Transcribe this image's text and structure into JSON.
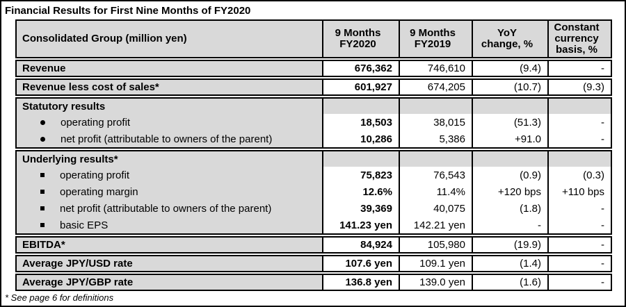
{
  "title": "Financial Results for First Nine Months of FY2020",
  "footnote": "* See page 6 for definitions",
  "colors": {
    "header_bg": "#d9d9d9",
    "label_column_bg": "#d9d9d9",
    "data_cell_bg": "#ffffff",
    "border": "#000000"
  },
  "table": {
    "header": [
      "Consolidated Group (million yen)",
      "9 Months\nFY2020",
      "9 Months\nFY2019",
      "YoY\nchange, %",
      "Constant\ncurrency\nbasis, %"
    ],
    "groups": [
      {
        "rows": [
          {
            "label": "Revenue",
            "style": "heading",
            "shaded": false,
            "values": [
              "676,362",
              "746,610",
              "(9.4)",
              "-"
            ]
          }
        ]
      },
      {
        "rows": [
          {
            "label": "Revenue less cost of sales*",
            "style": "heading",
            "shaded": false,
            "values": [
              "601,927",
              "674,205",
              "(10.7)",
              "(9.3)"
            ]
          }
        ]
      },
      {
        "rows": [
          {
            "label": "Statutory results",
            "style": "heading",
            "shaded": true,
            "values": [
              "",
              "",
              "",
              ""
            ]
          },
          {
            "label": "operating profit",
            "style": "bullet-round",
            "shaded": false,
            "values": [
              "18,503",
              "38,015",
              "(51.3)",
              "-"
            ]
          },
          {
            "label": "net profit (attributable to owners of the parent)",
            "style": "bullet-round",
            "shaded": false,
            "values": [
              "10,286",
              "5,386",
              "+91.0",
              "-"
            ]
          }
        ]
      },
      {
        "rows": [
          {
            "label": "Underlying results*",
            "style": "heading",
            "shaded": true,
            "values": [
              "",
              "",
              "",
              ""
            ]
          },
          {
            "label": "operating profit",
            "style": "bullet-square",
            "shaded": false,
            "values": [
              "75,823",
              "76,543",
              "(0.9)",
              "(0.3)"
            ]
          },
          {
            "label": "operating margin",
            "style": "bullet-square",
            "shaded": false,
            "values": [
              "12.6%",
              "11.4%",
              "+120 bps",
              "+110 bps"
            ]
          },
          {
            "label": "net profit (attributable to owners of the parent)",
            "style": "bullet-square",
            "shaded": false,
            "values": [
              "39,369",
              "40,075",
              "(1.8)",
              "-"
            ]
          },
          {
            "label": "basic EPS",
            "style": "bullet-square",
            "shaded": false,
            "values": [
              "141.23 yen",
              "142.21 yen",
              "-",
              "-"
            ]
          }
        ]
      },
      {
        "rows": [
          {
            "label": "EBITDA*",
            "style": "heading",
            "shaded": false,
            "values": [
              "84,924",
              "105,980",
              "(19.9)",
              "-"
            ]
          }
        ]
      },
      {
        "rows": [
          {
            "label": "Average JPY/USD rate",
            "style": "heading",
            "shaded": false,
            "values": [
              "107.6 yen",
              "109.1 yen",
              "(1.4)",
              "-"
            ]
          }
        ]
      },
      {
        "rows": [
          {
            "label": "Average JPY/GBP rate",
            "style": "heading",
            "shaded": false,
            "values": [
              "136.8 yen",
              "139.0 yen",
              "(1.6)",
              "-"
            ]
          }
        ]
      }
    ]
  }
}
